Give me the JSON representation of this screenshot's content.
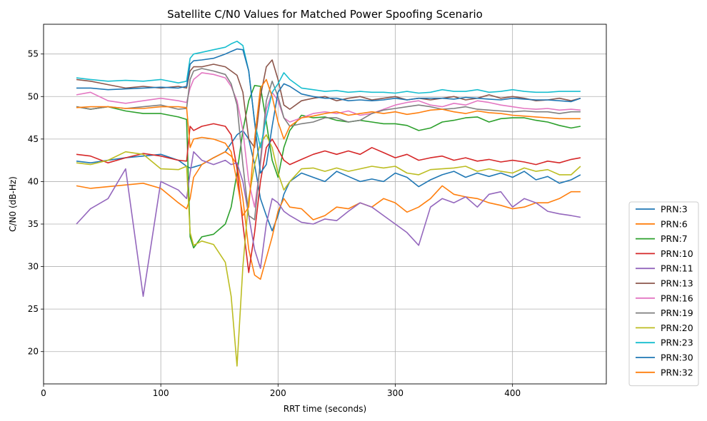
{
  "chart_data": {
    "type": "line",
    "title": "Satellite C/N0 Values for Matched Power Spoofing Scenario",
    "xlabel": "RRT time (seconds)",
    "ylabel": "C/N0 (dB-Hz)",
    "xlim": [
      0,
      480
    ],
    "ylim": [
      16.2,
      58.5
    ],
    "xticks": [
      0,
      100,
      200,
      300,
      400
    ],
    "yticks": [
      20,
      25,
      30,
      35,
      40,
      45,
      50,
      55
    ],
    "grid": true,
    "legend_position": "outside right, bottom",
    "x": [
      28,
      40,
      55,
      70,
      85,
      100,
      115,
      122,
      125,
      128,
      135,
      145,
      155,
      160,
      165,
      170,
      175,
      180,
      185,
      190,
      195,
      200,
      205,
      210,
      220,
      230,
      240,
      250,
      260,
      270,
      280,
      290,
      300,
      310,
      320,
      330,
      340,
      350,
      360,
      370,
      380,
      390,
      400,
      410,
      420,
      430,
      440,
      450,
      458
    ],
    "series": [
      {
        "name": "PRN:3",
        "color": "#1f77b4",
        "values": [
          42.4,
          42.2,
          42.5,
          42.8,
          43.0,
          43.2,
          42.5,
          41.8,
          41.6,
          41.7,
          42.0,
          42.8,
          43.5,
          44.5,
          45.5,
          46.0,
          45.0,
          42.0,
          38.0,
          36.0,
          34.2,
          36.0,
          38.5,
          40.0,
          41.0,
          40.5,
          40.0,
          41.2,
          40.6,
          40.0,
          40.3,
          40.0,
          41.0,
          40.5,
          39.4,
          40.2,
          40.8,
          41.2,
          40.5,
          41.0,
          40.6,
          41.0,
          40.5,
          41.2,
          40.2,
          40.6,
          39.8,
          40.2,
          40.8
        ]
      },
      {
        "name": "PRN:6",
        "color": "#ff7f0e",
        "values": [
          39.5,
          39.2,
          39.4,
          39.6,
          39.8,
          39.2,
          37.5,
          36.8,
          38.0,
          40.5,
          42.0,
          42.8,
          43.5,
          43.0,
          42.0,
          38.0,
          32.0,
          29.0,
          28.5,
          31.0,
          33.5,
          36.5,
          38.0,
          37.0,
          36.8,
          35.5,
          36.0,
          37.0,
          36.8,
          37.5,
          37.0,
          38.0,
          37.5,
          36.4,
          37.0,
          38.0,
          39.5,
          38.5,
          38.2,
          38.0,
          37.5,
          37.2,
          36.8,
          37.0,
          37.5,
          37.5,
          38.0,
          38.8,
          38.8
        ]
      },
      {
        "name": "PRN:7",
        "color": "#2ca02c",
        "values": [
          48.8,
          48.5,
          48.8,
          48.3,
          48.0,
          48.0,
          47.6,
          47.3,
          33.5,
          32.2,
          33.5,
          33.8,
          35.0,
          37.0,
          41.0,
          46.0,
          49.5,
          51.3,
          51.2,
          47.0,
          42.5,
          40.5,
          44.0,
          46.0,
          47.8,
          47.5,
          47.6,
          47.2,
          47.0,
          47.2,
          47.0,
          46.8,
          46.8,
          46.6,
          46.0,
          46.3,
          47.0,
          47.2,
          47.5,
          47.6,
          47.0,
          47.4,
          47.5,
          47.5,
          47.2,
          47.0,
          46.6,
          46.3,
          46.5
        ]
      },
      {
        "name": "PRN:10",
        "color": "#d62728",
        "values": [
          43.2,
          43.0,
          42.2,
          42.8,
          43.3,
          43.0,
          42.5,
          42.4,
          46.5,
          46.0,
          46.5,
          46.8,
          46.5,
          45.5,
          41.5,
          35.0,
          29.3,
          34.0,
          40.0,
          44.0,
          45.0,
          43.8,
          42.5,
          42.0,
          42.6,
          43.2,
          43.6,
          43.2,
          43.6,
          43.2,
          44.0,
          43.4,
          42.8,
          43.2,
          42.5,
          42.8,
          43.0,
          42.5,
          42.8,
          42.4,
          42.6,
          42.3,
          42.5,
          42.3,
          42.0,
          42.4,
          42.2,
          42.6,
          42.8
        ]
      },
      {
        "name": "PRN:11",
        "color": "#9467bd",
        "values": [
          35.0,
          36.8,
          38.0,
          41.5,
          26.5,
          40.0,
          39.0,
          38.0,
          41.0,
          43.5,
          42.5,
          42.0,
          42.5,
          42.0,
          42.2,
          40.0,
          36.0,
          32.0,
          29.8,
          35.0,
          38.0,
          37.5,
          36.5,
          36.0,
          35.2,
          35.0,
          35.6,
          35.4,
          36.5,
          37.5,
          37.0,
          36.0,
          35.0,
          34.0,
          32.5,
          37.0,
          38.0,
          37.5,
          38.2,
          37.0,
          38.5,
          38.8,
          37.0,
          38.0,
          37.5,
          36.5,
          36.2,
          36.0,
          35.8
        ]
      },
      {
        "name": "PRN:13",
        "color": "#8c564b",
        "values": [
          52.0,
          51.8,
          51.4,
          51.0,
          51.2,
          51.0,
          51.2,
          51.0,
          53.0,
          53.5,
          53.5,
          53.8,
          53.5,
          53.0,
          52.5,
          50.5,
          45.0,
          44.0,
          50.0,
          53.5,
          54.3,
          52.0,
          49.0,
          48.5,
          49.5,
          49.8,
          50.0,
          49.5,
          49.8,
          50.0,
          49.6,
          49.8,
          50.0,
          49.6,
          49.8,
          49.6,
          49.8,
          50.0,
          49.6,
          49.8,
          50.2,
          49.8,
          50.0,
          49.8,
          49.5,
          49.6,
          49.8,
          49.5,
          49.8
        ]
      },
      {
        "name": "PRN:16",
        "color": "#e377c2",
        "values": [
          50.2,
          50.5,
          49.5,
          49.2,
          49.5,
          49.8,
          49.5,
          49.3,
          51.0,
          52.0,
          52.8,
          52.6,
          52.2,
          51.2,
          49.5,
          46.0,
          40.0,
          37.0,
          42.0,
          48.5,
          50.5,
          49.5,
          47.5,
          47.0,
          47.5,
          48.0,
          48.2,
          48.0,
          48.3,
          47.8,
          48.0,
          48.5,
          49.0,
          49.3,
          49.5,
          49.0,
          48.8,
          49.2,
          49.0,
          49.5,
          49.3,
          49.0,
          48.8,
          48.6,
          48.5,
          48.6,
          48.4,
          48.5,
          48.4
        ]
      },
      {
        "name": "PRN:19",
        "color": "#7f7f7f",
        "values": [
          48.8,
          48.5,
          48.8,
          48.6,
          48.8,
          49.0,
          48.5,
          48.6,
          52.0,
          53.0,
          53.3,
          53.0,
          52.6,
          51.5,
          49.0,
          42.0,
          36.0,
          35.5,
          42.5,
          49.5,
          51.8,
          50.0,
          47.5,
          46.5,
          46.8,
          47.0,
          47.5,
          47.5,
          47.0,
          47.2,
          48.0,
          48.4,
          48.6,
          48.8,
          49.0,
          48.8,
          48.5,
          48.6,
          48.8,
          48.5,
          48.4,
          48.3,
          48.2,
          48.3,
          48.2,
          48.2,
          48.0,
          48.2,
          48.2
        ]
      },
      {
        "name": "PRN:20",
        "color": "#bcbd22",
        "values": [
          42.2,
          42.0,
          42.5,
          43.5,
          43.2,
          41.5,
          41.4,
          41.8,
          34.0,
          32.5,
          33.0,
          32.6,
          30.5,
          26.5,
          18.3,
          30.0,
          38.0,
          42.0,
          44.5,
          45.5,
          44.0,
          41.0,
          39.0,
          40.0,
          41.5,
          41.6,
          41.2,
          41.6,
          41.2,
          41.5,
          41.8,
          41.6,
          41.8,
          41.0,
          40.8,
          41.4,
          41.5,
          41.6,
          41.8,
          41.2,
          41.5,
          41.2,
          41.0,
          41.6,
          41.2,
          41.4,
          40.8,
          40.8,
          41.8
        ]
      },
      {
        "name": "PRN:23",
        "color": "#17becf",
        "values": [
          52.2,
          52.0,
          51.8,
          51.9,
          51.8,
          52.0,
          51.6,
          51.8,
          54.5,
          55.0,
          55.2,
          55.5,
          55.8,
          56.2,
          56.5,
          56.0,
          53.0,
          47.0,
          44.0,
          47.5,
          50.5,
          51.5,
          52.8,
          52.0,
          51.0,
          50.8,
          50.6,
          50.7,
          50.5,
          50.6,
          50.5,
          50.5,
          50.4,
          50.6,
          50.4,
          50.5,
          50.8,
          50.6,
          50.6,
          50.8,
          50.5,
          50.6,
          50.8,
          50.6,
          50.5,
          50.5,
          50.6,
          50.6,
          50.6
        ]
      },
      {
        "name": "PRN:30",
        "color": "#1f77b4",
        "values": [
          51.0,
          51.0,
          50.8,
          50.9,
          51.0,
          51.1,
          51.0,
          51.2,
          53.8,
          54.2,
          54.3,
          54.5,
          55.0,
          55.3,
          55.6,
          55.5,
          53.0,
          47.0,
          41.0,
          42.0,
          46.5,
          50.5,
          51.5,
          51.2,
          50.3,
          50.0,
          49.8,
          49.8,
          49.5,
          49.6,
          49.5,
          49.6,
          49.8,
          49.6,
          49.8,
          49.8,
          49.8,
          49.7,
          49.9,
          49.8,
          49.7,
          49.6,
          49.8,
          49.7,
          49.6,
          49.6,
          49.5,
          49.4,
          49.8
        ]
      },
      {
        "name": "PRN:32",
        "color": "#ff7f0e",
        "values": [
          48.7,
          48.8,
          48.8,
          48.6,
          48.6,
          48.8,
          48.8,
          48.7,
          44.0,
          45.0,
          45.2,
          45.0,
          44.5,
          43.5,
          40.0,
          36.0,
          37.0,
          45.0,
          51.0,
          52.0,
          50.0,
          47.0,
          45.0,
          46.5,
          47.5,
          47.7,
          48.0,
          48.2,
          47.8,
          48.0,
          48.2,
          48.0,
          48.2,
          47.9,
          48.1,
          48.4,
          48.5,
          48.2,
          48.0,
          48.3,
          48.1,
          48.0,
          47.8,
          47.7,
          47.6,
          47.5,
          47.4,
          47.4,
          47.4
        ]
      }
    ]
  }
}
